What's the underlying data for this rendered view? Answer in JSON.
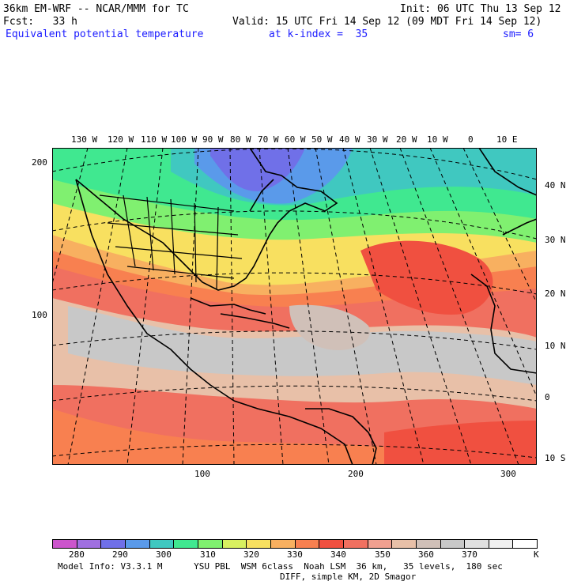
{
  "header": {
    "model": "36km EM-WRF -- NCAR/MMM for TC",
    "init": "Init: 06 UTC Thu 13 Sep 12",
    "fcst": "Fcst:   33 h",
    "valid": "Valid: 15 UTC Fri 14 Sep 12 (09 MDT Fri 14 Sep 12)",
    "field": "Equivalent potential temperature",
    "k_index": "at k-index =  35",
    "sm": "sm= 6"
  },
  "top_lon_labels": [
    "130 W",
    "120 W",
    "110 W",
    "100 W",
    "90 W",
    "80 W",
    "70 W",
    "60 W",
    "50 W",
    "40 W",
    "30 W",
    "20 W",
    "10 W",
    "0",
    "10 E"
  ],
  "right_lat_labels": [
    "40 N",
    "30 N",
    "20 N",
    "10 N",
    "0",
    "10 S"
  ],
  "left_grid_labels": [
    "200",
    "100"
  ],
  "bottom_grid_labels": [
    "100",
    "200",
    "300"
  ],
  "colorbar": {
    "labels": [
      "280",
      "290",
      "300",
      "310",
      "320",
      "330",
      "340",
      "350",
      "360",
      "370",
      "K"
    ],
    "colors": [
      "#cc55cc",
      "#a070e0",
      "#7070e8",
      "#5a9aea",
      "#40c8c0",
      "#40e890",
      "#80f070",
      "#d8f060",
      "#f8e060",
      "#f8b060",
      "#f88050",
      "#f05040",
      "#f07060",
      "#f0a090",
      "#e8c0a8",
      "#d0c0b8",
      "#c8c8c8",
      "#e0e0e0",
      "#f0f0f0",
      "#ffffff"
    ]
  },
  "footer": {
    "line1": "Model Info: V3.3.1 M      YSU PBL  WSM 6class  Noah LSM  36 km,   35 levels,  180 sec",
    "line2": "DIFF, simple KM, 2D Smagor"
  }
}
